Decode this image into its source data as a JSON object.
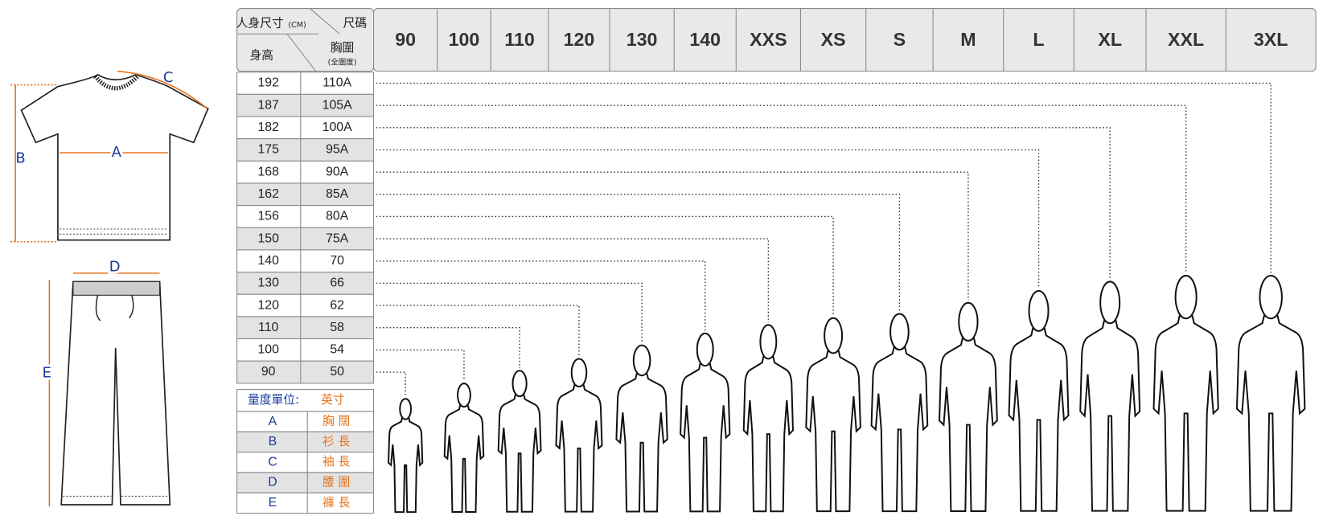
{
  "header": {
    "body_size": "人身尺寸",
    "unit": "(CM)",
    "size_label": "尺碼",
    "height": "身高",
    "chest": "胸圍",
    "chest_note": "(全圍度)"
  },
  "sizes": [
    "90",
    "100",
    "110",
    "120",
    "130",
    "140",
    "XXS",
    "XS",
    "S",
    "M",
    "L",
    "XL",
    "XXL",
    "3XL"
  ],
  "table": {
    "rows": [
      [
        "192",
        "110A"
      ],
      [
        "187",
        "105A"
      ],
      [
        "182",
        "100A"
      ],
      [
        "175",
        "95A"
      ],
      [
        "168",
        "90A"
      ],
      [
        "162",
        "85A"
      ],
      [
        "156",
        "80A"
      ],
      [
        "150",
        "75A"
      ],
      [
        "140",
        "70"
      ],
      [
        "130",
        "66"
      ],
      [
        "120",
        "62"
      ],
      [
        "110",
        "58"
      ],
      [
        "100",
        "54"
      ],
      [
        "90",
        "50"
      ]
    ]
  },
  "legend": {
    "title": "量度單位:",
    "unit": "英寸",
    "items": [
      [
        "A",
        "胸 闊"
      ],
      [
        "B",
        "衫 長"
      ],
      [
        "C",
        "袖 長"
      ],
      [
        "D",
        "腰 圍"
      ],
      [
        "E",
        "褲 長"
      ]
    ]
  },
  "garments": {
    "labels": [
      "A",
      "B",
      "C",
      "D",
      "E"
    ]
  }
}
